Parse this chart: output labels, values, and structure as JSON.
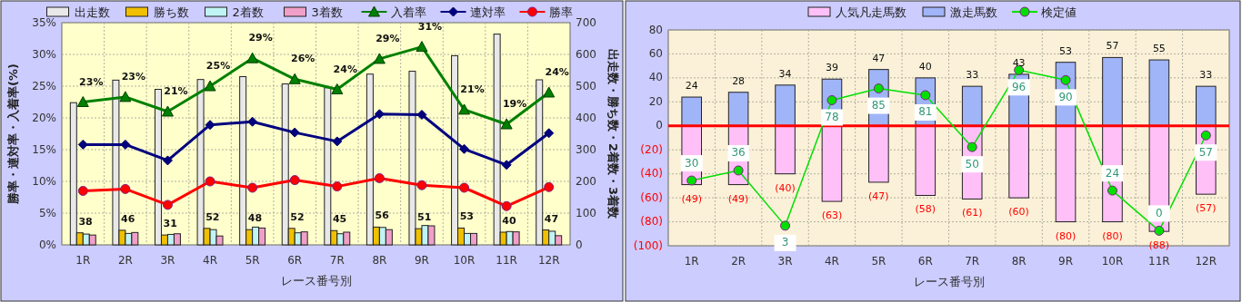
{
  "chart_data": [
    {
      "type": "bar",
      "xlabel": "レース番号別",
      "ylabel": "勝率・連対率・入着率(%)",
      "y2label": "出走数・勝ち数・2着数・3着数",
      "categories": [
        "1R",
        "2R",
        "3R",
        "4R",
        "5R",
        "6R",
        "7R",
        "8R",
        "9R",
        "10R",
        "11R",
        "12R"
      ],
      "series": [
        {
          "name": "出走数",
          "axis": "y2",
          "color": "#e8e8e8",
          "values": [
            448,
            519,
            490,
            521,
            530,
            507,
            495,
            538,
            547,
            596,
            664,
            520
          ]
        },
        {
          "name": "勝ち数",
          "axis": "y2",
          "color": "#f0c000",
          "values": [
            38,
            46,
            31,
            52,
            48,
            52,
            45,
            56,
            51,
            53,
            40,
            47
          ],
          "value_labels": [
            "38",
            "46",
            "31",
            "52",
            "48",
            "52",
            "45",
            "56",
            "51",
            "53",
            "40",
            "47"
          ]
        },
        {
          "name": "2着数",
          "axis": "y2",
          "color": "#c0f4f4",
          "values": [
            34,
            36,
            33,
            48,
            56,
            38,
            35,
            55,
            61,
            36,
            42,
            43
          ]
        },
        {
          "name": "3着数",
          "axis": "y2",
          "color": "#f0a0c8",
          "values": [
            31,
            39,
            35,
            28,
            53,
            41,
            40,
            48,
            60,
            36,
            41,
            29
          ]
        },
        {
          "name": "入着率",
          "type": "line",
          "color": "#008000",
          "marker": "triangle",
          "values": [
            22.5,
            23.3,
            21.0,
            25.0,
            29.4,
            26.1,
            24.5,
            29.3,
            31.2,
            21.3,
            19.0,
            24.0
          ],
          "value_labels": [
            "23%",
            "23%",
            "21%",
            "25%",
            "29%",
            "26%",
            "24%",
            "29%",
            "31%",
            "21%",
            "19%",
            "24%"
          ]
        },
        {
          "name": "連対率",
          "type": "line",
          "color": "#000080",
          "marker": "diamond",
          "values": [
            15.8,
            15.8,
            13.3,
            18.9,
            19.4,
            17.7,
            16.3,
            20.6,
            20.5,
            15.1,
            12.6,
            17.6
          ]
        },
        {
          "name": "勝率",
          "type": "line",
          "color": "#ff0000",
          "marker": "circle",
          "values": [
            8.5,
            8.8,
            6.3,
            10.0,
            9.0,
            10.2,
            9.2,
            10.5,
            9.4,
            9.0,
            6.1,
            9.1
          ]
        }
      ],
      "ylim": [
        0,
        35
      ],
      "yticks": [
        {
          "value": 0,
          "label": "0%"
        },
        {
          "value": 5,
          "label": "5%"
        },
        {
          "value": 10,
          "label": "10%"
        },
        {
          "value": 15,
          "label": "15%"
        },
        {
          "value": 20,
          "label": "20%"
        },
        {
          "value": 25,
          "label": "25%"
        },
        {
          "value": 30,
          "label": "30%"
        },
        {
          "value": 35,
          "label": "35%"
        }
      ],
      "y2lim": [
        0,
        700
      ],
      "y2ticks": [
        0,
        100,
        200,
        300,
        400,
        500,
        600,
        700
      ],
      "grid": true,
      "legend": "top"
    },
    {
      "type": "bar",
      "xlabel": "レース番号別",
      "stacked": true,
      "categories": [
        "1R",
        "2R",
        "3R",
        "4R",
        "5R",
        "6R",
        "7R",
        "8R",
        "9R",
        "10R",
        "11R",
        "12R"
      ],
      "series": [
        {
          "name": "人気凡走馬数",
          "color": "#ffc0f8",
          "values": [
            -49,
            -49,
            -40,
            -63,
            -47,
            -58,
            -61,
            -60,
            -80,
            -80,
            -88,
            -57
          ],
          "value_labels": [
            "(49)",
            "(49)",
            "(40)",
            "(63)",
            "(47)",
            "(58)",
            "(61)",
            "(60)",
            "(80)",
            "(80)",
            "(88)",
            "(57)"
          ]
        },
        {
          "name": "激走馬数",
          "color": "#a0b4f8",
          "values": [
            24,
            28,
            34,
            39,
            47,
            40,
            33,
            43,
            53,
            57,
            55,
            33
          ],
          "value_labels": [
            "24",
            "28",
            "34",
            "39",
            "47",
            "40",
            "33",
            "43",
            "53",
            "57",
            "55",
            "33"
          ]
        },
        {
          "name": "検定値",
          "type": "line",
          "axis": "y2",
          "color": "#00e000",
          "marker": "circle",
          "values": [
            30,
            36,
            3,
            78,
            85,
            81,
            50,
            96,
            90,
            24,
            0,
            57
          ],
          "value_labels": [
            "30",
            "36",
            "3",
            "78",
            "85",
            "81",
            "50",
            "96",
            "90",
            "24",
            "0",
            "57"
          ]
        }
      ],
      "ylim": [
        -100,
        80
      ],
      "yticks": [
        {
          "value": -100,
          "label": "(100)"
        },
        {
          "value": -80,
          "label": "(80)"
        },
        {
          "value": -60,
          "label": "(60)"
        },
        {
          "value": -40,
          "label": "(40)"
        },
        {
          "value": -20,
          "label": "(20)"
        },
        0,
        20,
        40,
        60,
        80
      ],
      "y2lim": [
        -9,
        120
      ],
      "ref_lines": [
        {
          "axis": "y",
          "value": 0,
          "color": "#ff0000"
        }
      ],
      "grid": true,
      "legend": "top"
    }
  ]
}
